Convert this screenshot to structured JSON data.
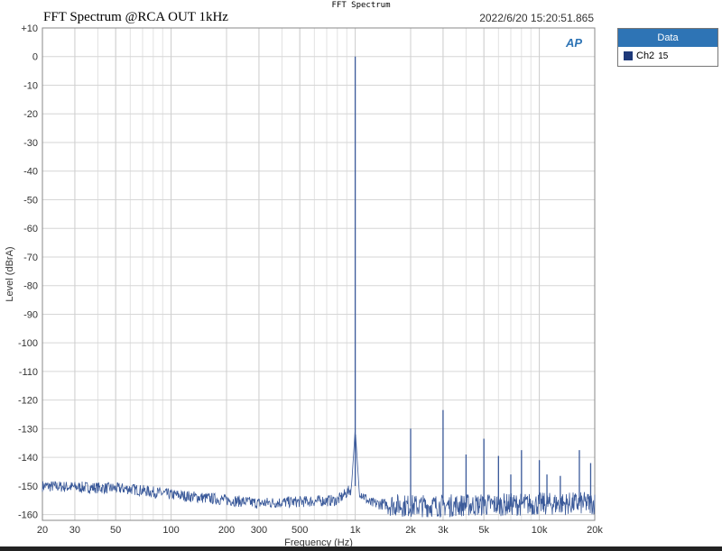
{
  "window_title": "FFT Spectrum",
  "chart_data": {
    "type": "line",
    "title": "FFT Spectrum @RCA OUT 1kHz",
    "timestamp": "2022/6/20 15:20:51.865",
    "xlabel": "Frequency (Hz)",
    "ylabel": "Level (dBrA)",
    "xscale": "log",
    "xlim": [
      20,
      20000
    ],
    "ylim": [
      -162,
      10
    ],
    "grid": true,
    "xticks": [
      20,
      30,
      50,
      100,
      200,
      300,
      500,
      1000,
      2000,
      3000,
      5000,
      10000,
      20000
    ],
    "xtick_labels": [
      "20",
      "30",
      "50",
      "100",
      "200",
      "300",
      "500",
      "1k",
      "2k",
      "3k",
      "5k",
      "10k",
      "20k"
    ],
    "yticks": [
      10,
      0,
      -10,
      -20,
      -30,
      -40,
      -50,
      -60,
      -70,
      -80,
      -90,
      -100,
      -110,
      -120,
      -130,
      -140,
      -150,
      -160
    ],
    "ytick_labels": [
      "+10",
      "0",
      "-10",
      "-20",
      "-30",
      "-40",
      "-50",
      "-60",
      "-70",
      "-80",
      "-90",
      "-100",
      "-110",
      "-120",
      "-130",
      "-140",
      "-150",
      "-160"
    ],
    "legend": {
      "title": "Data",
      "placement": "right",
      "entries": [
        {
          "name": "Ch2",
          "suffix": "15",
          "color": "#1f3a7a"
        }
      ]
    },
    "series": [
      {
        "name": "Ch2",
        "color": "#3b5a9a",
        "peaks": [
          [
            1000,
            0
          ],
          [
            2000,
            -130
          ],
          [
            3000,
            -123.5
          ],
          [
            4000,
            -139
          ],
          [
            5000,
            -133.5
          ],
          [
            6000,
            -139.5
          ],
          [
            7000,
            -146
          ],
          [
            8000,
            -137.5
          ],
          [
            10000,
            -141
          ],
          [
            11000,
            -146
          ],
          [
            13000,
            -146.5
          ],
          [
            16500,
            -137.5
          ],
          [
            19000,
            -142
          ]
        ],
        "noise_floor": [
          [
            20,
            -150
          ],
          [
            60,
            -151
          ],
          [
            100,
            -153
          ],
          [
            300,
            -156
          ],
          [
            800,
            -155
          ],
          [
            1000,
            -150
          ],
          [
            1200,
            -156
          ],
          [
            2000,
            -157
          ],
          [
            20000,
            -156
          ]
        ]
      }
    ]
  },
  "logo": "AP"
}
